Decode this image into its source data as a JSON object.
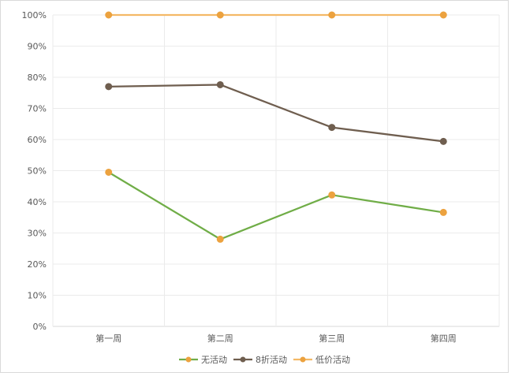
{
  "chart_data": {
    "type": "line",
    "categories": [
      "第一周",
      "第二周",
      "第三周",
      "第四周"
    ],
    "ylim": [
      0,
      100
    ],
    "y_ticks": [
      "0%",
      "10%",
      "20%",
      "30%",
      "40%",
      "50%",
      "60%",
      "70%",
      "80%",
      "90%",
      "100%"
    ],
    "grid": true,
    "legend_position": "bottom",
    "series": [
      {
        "name": "无活动",
        "values": [
          49.5,
          28,
          42.2,
          36.6
        ],
        "line_color": "#70ad47",
        "marker_color": "#eca23f"
      },
      {
        "name": "8折活动",
        "values": [
          77,
          77.6,
          63.9,
          59.4
        ],
        "line_color": "#6f5e4f",
        "marker_color": "#6f5e4f"
      },
      {
        "name": "低价活动",
        "values": [
          100,
          100,
          100,
          100
        ],
        "line_color": "#f4b966",
        "marker_color": "#eca23f"
      }
    ]
  },
  "colors": {
    "grid": "#ebebeb",
    "axis": "#d9d9d9",
    "text": "#595959"
  }
}
